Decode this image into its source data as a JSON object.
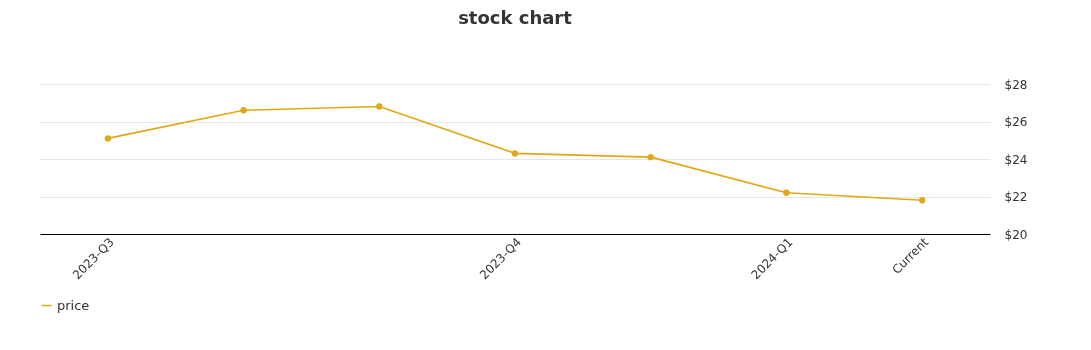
{
  "chart_data": {
    "type": "line",
    "title": "stock chart",
    "categories": [
      "2023-Q3",
      null,
      null,
      "2023-Q4",
      null,
      "2024-Q1",
      "Current"
    ],
    "series": [
      {
        "name": "price",
        "color": "#e0a818",
        "values": [
          25.1,
          26.6,
          26.8,
          24.3,
          24.1,
          22.2,
          21.8
        ]
      }
    ],
    "ylim": [
      20,
      28
    ],
    "yticks": [
      {
        "value": 20,
        "label": "$20"
      },
      {
        "value": 22,
        "label": "$22"
      },
      {
        "value": 24,
        "label": "$24"
      },
      {
        "value": 26,
        "label": "$26"
      },
      {
        "value": 28,
        "label": "$28"
      }
    ],
    "grid": "y",
    "legend": "bottom",
    "marker": "circle",
    "line_style": "solid"
  }
}
